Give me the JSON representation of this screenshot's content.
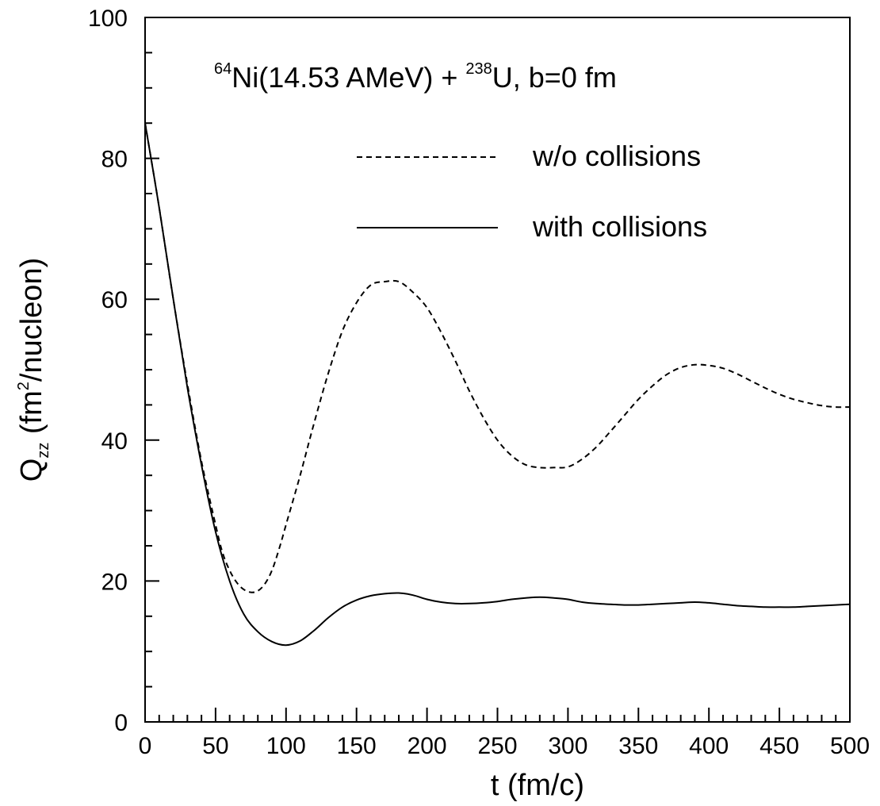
{
  "chart_data": {
    "type": "line",
    "xlabel": "t (fm/c)",
    "ylabel": {
      "symbol": "Q",
      "subscript": "zz",
      "unit_open": " (fm",
      "unit_sup": "2",
      "unit_close": "/nucleon)"
    },
    "annotation": {
      "sup1": "64",
      "part1": "Ni(14.53 AMeV) + ",
      "sup2": "238",
      "part2": "U, b=0 fm"
    },
    "xlim": [
      0,
      500
    ],
    "ylim": [
      0,
      100
    ],
    "x_ticks": [
      0,
      50,
      100,
      150,
      200,
      250,
      300,
      350,
      400,
      450,
      500
    ],
    "x_tick_labels": [
      "0",
      "50",
      "100",
      "150",
      "200",
      "250",
      "300",
      "350",
      "400",
      "450",
      "500"
    ],
    "y_ticks": [
      0,
      20,
      40,
      60,
      80,
      100
    ],
    "y_tick_labels": [
      "0",
      "20",
      "40",
      "60",
      "80",
      "100"
    ],
    "grid": false,
    "legend_placement": "top-right",
    "series": [
      {
        "name": "w/o collisions",
        "style": "dashed",
        "color": "#000000",
        "x": [
          0,
          10,
          20,
          30,
          40,
          50,
          55,
          60,
          65,
          70,
          75,
          80,
          85,
          90,
          95,
          100,
          110,
          120,
          130,
          140,
          150,
          160,
          170,
          180,
          190,
          200,
          210,
          220,
          230,
          240,
          250,
          260,
          270,
          280,
          290,
          300,
          310,
          320,
          330,
          340,
          350,
          360,
          370,
          380,
          390,
          400,
          410,
          420,
          430,
          440,
          450,
          460,
          470,
          480,
          490,
          500
        ],
        "y": [
          85,
          73,
          60,
          48,
          37,
          28,
          24,
          21.5,
          19.8,
          18.8,
          18.4,
          18.6,
          19.6,
          21.5,
          24.5,
          28,
          35,
          42.5,
          49.5,
          55.5,
          59.5,
          62,
          62.5,
          62.5,
          61,
          58.8,
          55.3,
          51.3,
          47,
          43.2,
          40,
          37.8,
          36.5,
          36.1,
          36.1,
          36.2,
          37.3,
          39,
          41.2,
          43.5,
          45.8,
          47.7,
          49.3,
          50.3,
          50.7,
          50.6,
          50.2,
          49.4,
          48.4,
          47.4,
          46.5,
          45.8,
          45.3,
          44.9,
          44.7,
          44.7
        ]
      },
      {
        "name": "with collisions",
        "style": "solid",
        "color": "#000000",
        "x": [
          0,
          10,
          20,
          30,
          40,
          50,
          60,
          70,
          80,
          90,
          100,
          110,
          120,
          130,
          140,
          150,
          160,
          170,
          180,
          190,
          200,
          210,
          220,
          230,
          240,
          250,
          260,
          270,
          280,
          290,
          300,
          310,
          320,
          330,
          340,
          350,
          360,
          370,
          380,
          390,
          400,
          410,
          420,
          430,
          440,
          450,
          460,
          470,
          480,
          490,
          500
        ],
        "y": [
          85,
          73,
          60,
          47.5,
          36.5,
          27,
          20,
          15.3,
          12.8,
          11.4,
          10.9,
          11.5,
          13,
          14.8,
          16.3,
          17.3,
          17.9,
          18.2,
          18.3,
          18,
          17.4,
          17,
          16.8,
          16.8,
          16.9,
          17.1,
          17.4,
          17.6,
          17.7,
          17.6,
          17.4,
          17,
          16.8,
          16.7,
          16.6,
          16.6,
          16.7,
          16.8,
          16.9,
          17,
          16.9,
          16.7,
          16.5,
          16.4,
          16.3,
          16.3,
          16.3,
          16.4,
          16.5,
          16.6,
          16.7
        ]
      }
    ]
  }
}
